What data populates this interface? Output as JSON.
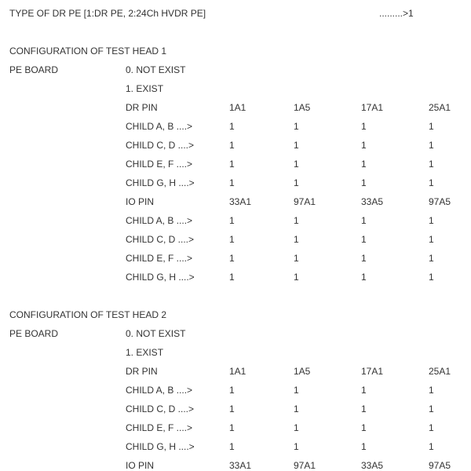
{
  "header": {
    "label": "TYPE OF DR PE [1:DR PE, 2:24Ch HVDR PE]",
    "value": ".........>1"
  },
  "heads": [
    {
      "title": "CONFIGURATION OF TEST HEAD 1",
      "board_label": "PE BOARD",
      "options": [
        "0. NOT EXIST",
        "1. EXIST"
      ],
      "groups": [
        {
          "label": "DR PIN",
          "pins": [
            "1A1",
            "1A5",
            "17A1",
            "25A1"
          ],
          "rows": [
            {
              "label": "CHILD A, B ....>",
              "values": [
                1,
                1,
                1,
                1
              ]
            },
            {
              "label": "CHILD C, D ....>",
              "values": [
                1,
                1,
                1,
                1
              ]
            },
            {
              "label": "CHILD E, F ....>",
              "values": [
                1,
                1,
                1,
                1
              ]
            },
            {
              "label": "CHILD G, H ....>",
              "values": [
                1,
                1,
                1,
                1
              ]
            }
          ]
        },
        {
          "label": "IO PIN",
          "pins": [
            "33A1",
            "97A1",
            "33A5",
            "97A5"
          ],
          "rows": [
            {
              "label": "CHILD A, B ....>",
              "values": [
                1,
                1,
                1,
                1
              ]
            },
            {
              "label": "CHILD C, D ....>",
              "values": [
                1,
                1,
                1,
                1
              ]
            },
            {
              "label": "CHILD E, F ....>",
              "values": [
                1,
                1,
                1,
                1
              ]
            },
            {
              "label": "CHILD G, H ....>",
              "values": [
                1,
                1,
                1,
                1
              ]
            }
          ]
        }
      ]
    },
    {
      "title": "CONFIGURATION OF TEST HEAD 2",
      "board_label": "PE BOARD",
      "options": [
        "0. NOT EXIST",
        "1. EXIST"
      ],
      "groups": [
        {
          "label": "DR PIN",
          "pins": [
            "1A1",
            "1A5",
            "17A1",
            "25A1"
          ],
          "rows": [
            {
              "label": "CHILD A, B ....>",
              "values": [
                1,
                1,
                1,
                1
              ]
            },
            {
              "label": "CHILD C, D ....>",
              "values": [
                1,
                1,
                1,
                1
              ]
            },
            {
              "label": "CHILD E, F ....>",
              "values": [
                1,
                1,
                1,
                1
              ]
            },
            {
              "label": "CHILD G, H ....>",
              "values": [
                1,
                1,
                1,
                1
              ]
            }
          ]
        },
        {
          "label": "IO PIN",
          "pins": [
            "33A1",
            "97A1",
            "33A5",
            "97A5"
          ],
          "rows": []
        }
      ]
    }
  ]
}
